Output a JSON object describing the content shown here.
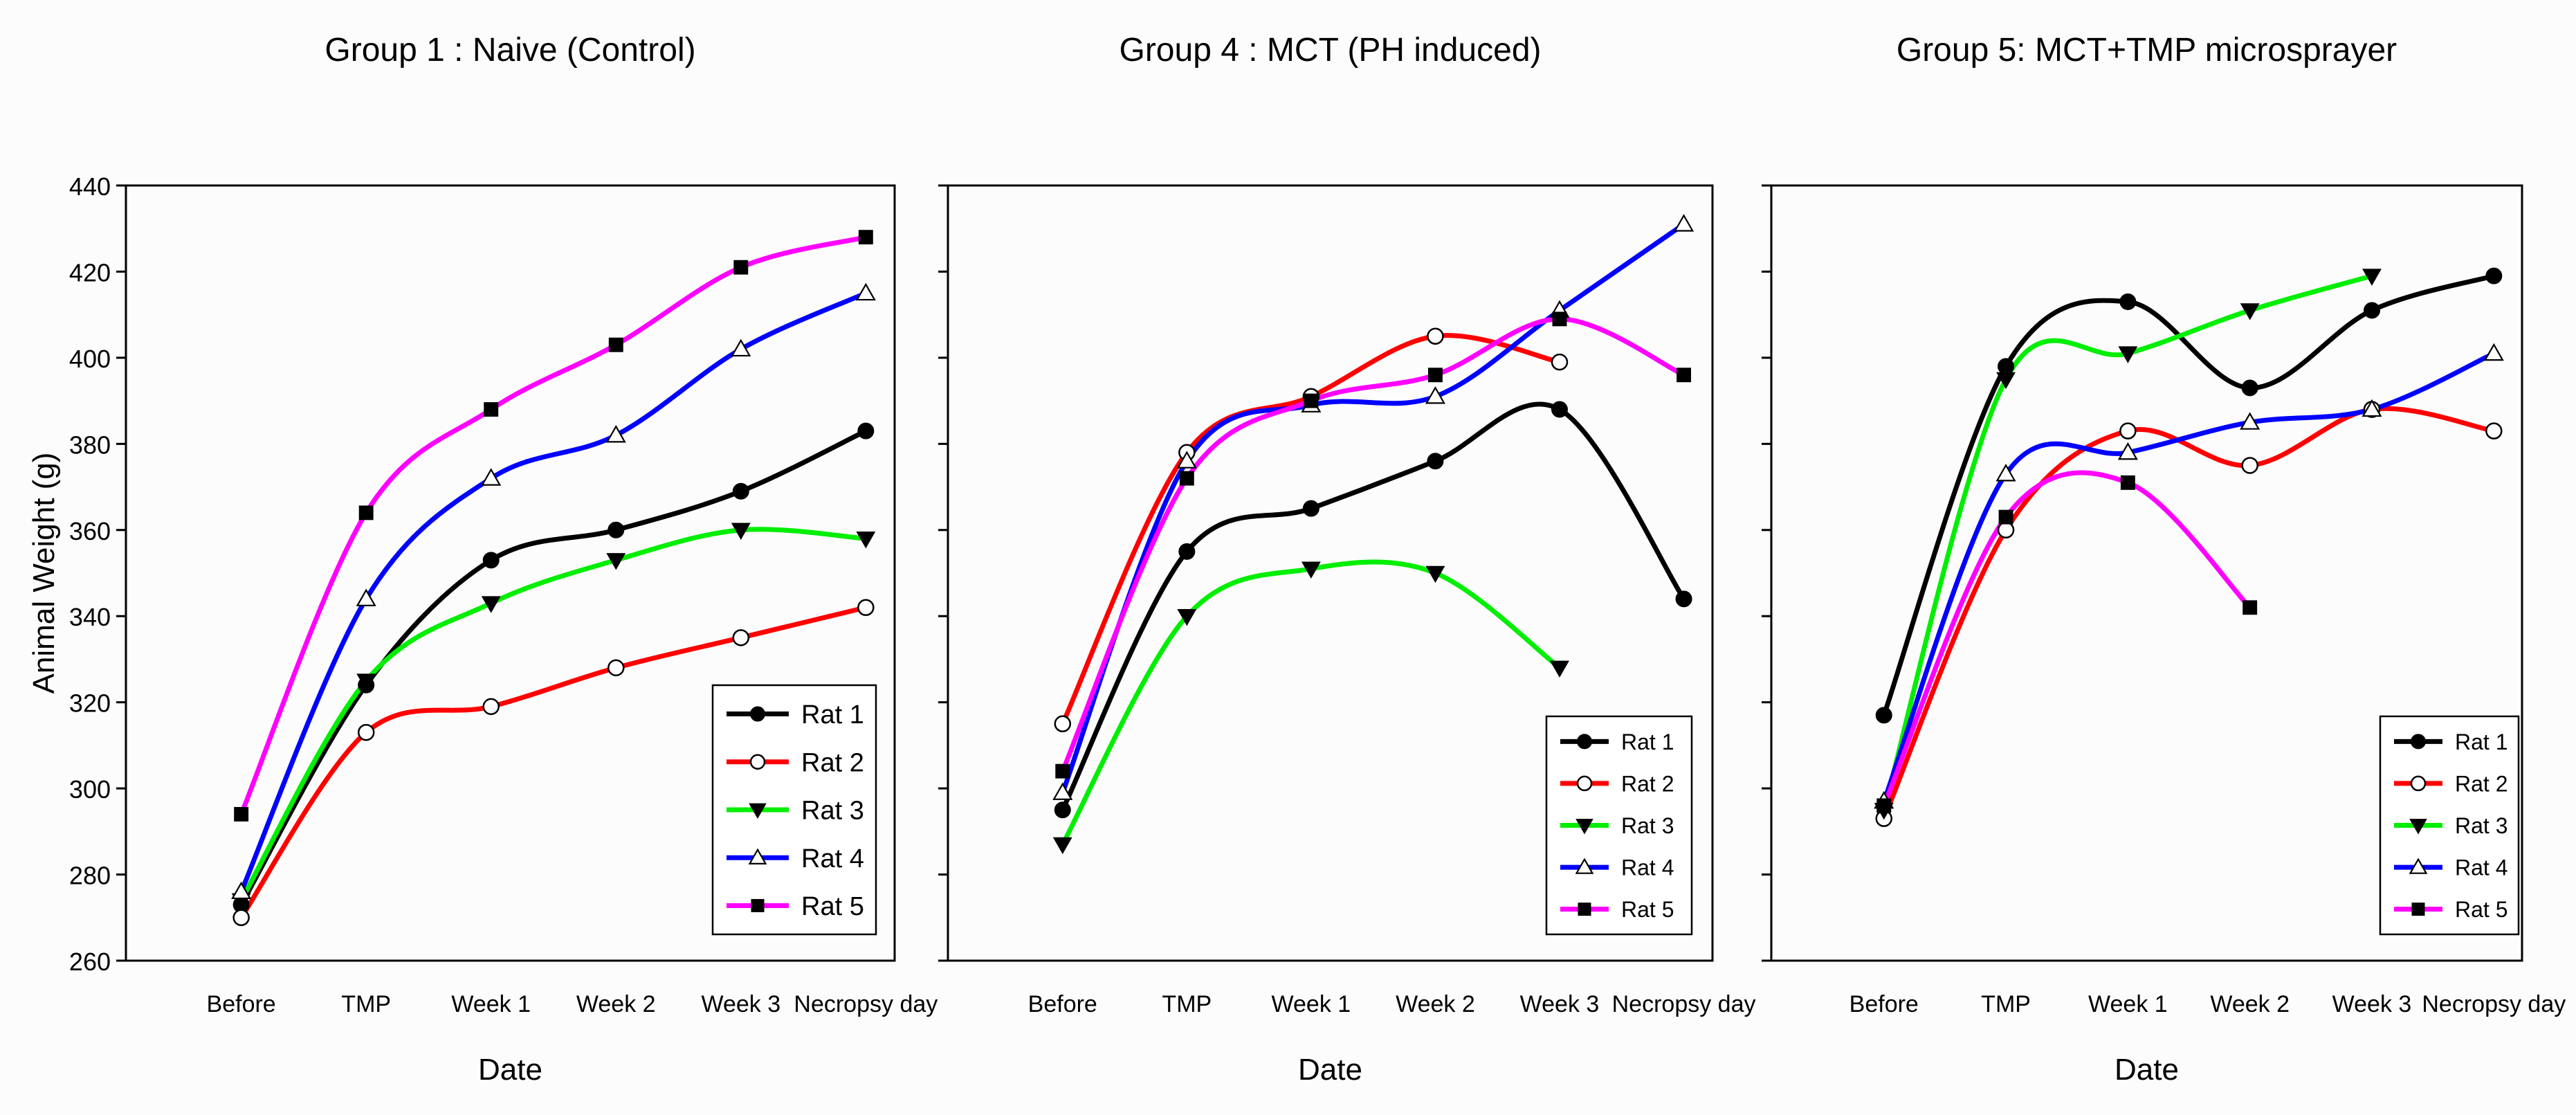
{
  "chart_data": [
    {
      "type": "line",
      "title": "Group 1 : Naive (Control)",
      "xlabel": "Date",
      "ylabel": "Animal Weight (g)",
      "categories": [
        "Before",
        "TMP",
        "Week 1",
        "Week 2",
        "Week 3",
        "Necropsy day"
      ],
      "ylim": [
        260,
        440
      ],
      "yticks": [
        "260",
        "280",
        "300",
        "320",
        "340",
        "360",
        "380",
        "400",
        "420",
        "440"
      ],
      "legend_position": "bottom-right",
      "series": [
        {
          "name": "Rat 1",
          "color": "#000000",
          "marker": "circle-filled",
          "values": [
            273,
            324,
            353,
            360,
            369,
            383
          ]
        },
        {
          "name": "Rat 2",
          "color": "#ff0000",
          "marker": "circle-open",
          "values": [
            270,
            313,
            319,
            328,
            335,
            342
          ]
        },
        {
          "name": "Rat 3",
          "color": "#00ee00",
          "marker": "triangle-down",
          "values": [
            274,
            325,
            343,
            353,
            360,
            358
          ]
        },
        {
          "name": "Rat 4",
          "color": "#0000ff",
          "marker": "triangle-up-open",
          "values": [
            276,
            344,
            372,
            382,
            402,
            415
          ]
        },
        {
          "name": "Rat 5",
          "color": "#ff00ff",
          "marker": "square",
          "values": [
            294,
            364,
            388,
            403,
            421,
            428
          ]
        }
      ]
    },
    {
      "type": "line",
      "title": "Group 4 : MCT (PH induced)",
      "xlabel": "Date",
      "ylabel": "",
      "categories": [
        "Before",
        "TMP",
        "Week 1",
        "Week 2",
        "Week 3",
        "Necropsy day"
      ],
      "ylim": [
        260,
        440
      ],
      "yticks": [],
      "legend_position": "bottom-right",
      "series": [
        {
          "name": "Rat 1",
          "color": "#000000",
          "marker": "circle-filled",
          "values": [
            295,
            355,
            365,
            376,
            388,
            344
          ]
        },
        {
          "name": "Rat 2",
          "color": "#ff0000",
          "marker": "circle-open",
          "values": [
            315,
            378,
            391,
            405,
            399,
            null
          ]
        },
        {
          "name": "Rat 3",
          "color": "#00ee00",
          "marker": "triangle-down",
          "values": [
            287,
            340,
            351,
            350,
            328,
            null
          ]
        },
        {
          "name": "Rat 4",
          "color": "#0000ff",
          "marker": "triangle-up-open",
          "values": [
            299,
            376,
            389,
            391,
            411,
            431
          ]
        },
        {
          "name": "Rat 5",
          "color": "#ff00ff",
          "marker": "square",
          "values": [
            304,
            372,
            390,
            396,
            409,
            396
          ]
        }
      ]
    },
    {
      "type": "line",
      "title": "Group 5: MCT+TMP microsprayer",
      "xlabel": "Date",
      "ylabel": "",
      "categories": [
        "Before",
        "TMP",
        "Week 1",
        "Week 2",
        "Week 3",
        "Necropsy day"
      ],
      "ylim": [
        260,
        440
      ],
      "yticks": [],
      "legend_position": "bottom-right",
      "series": [
        {
          "name": "Rat 1",
          "color": "#000000",
          "marker": "circle-filled",
          "values": [
            317,
            398,
            413,
            393,
            411,
            419
          ]
        },
        {
          "name": "Rat 2",
          "color": "#ff0000",
          "marker": "circle-open",
          "values": [
            293,
            360,
            383,
            375,
            388,
            383
          ]
        },
        {
          "name": "Rat 3",
          "color": "#00ee00",
          "marker": "triangle-down",
          "values": [
            295,
            395,
            401,
            411,
            419,
            null
          ]
        },
        {
          "name": "Rat 4",
          "color": "#0000ff",
          "marker": "triangle-up-open",
          "values": [
            297,
            373,
            378,
            385,
            388,
            401
          ]
        },
        {
          "name": "Rat 5",
          "color": "#ff00ff",
          "marker": "square",
          "values": [
            296,
            363,
            371,
            342,
            null,
            null
          ]
        }
      ]
    }
  ]
}
